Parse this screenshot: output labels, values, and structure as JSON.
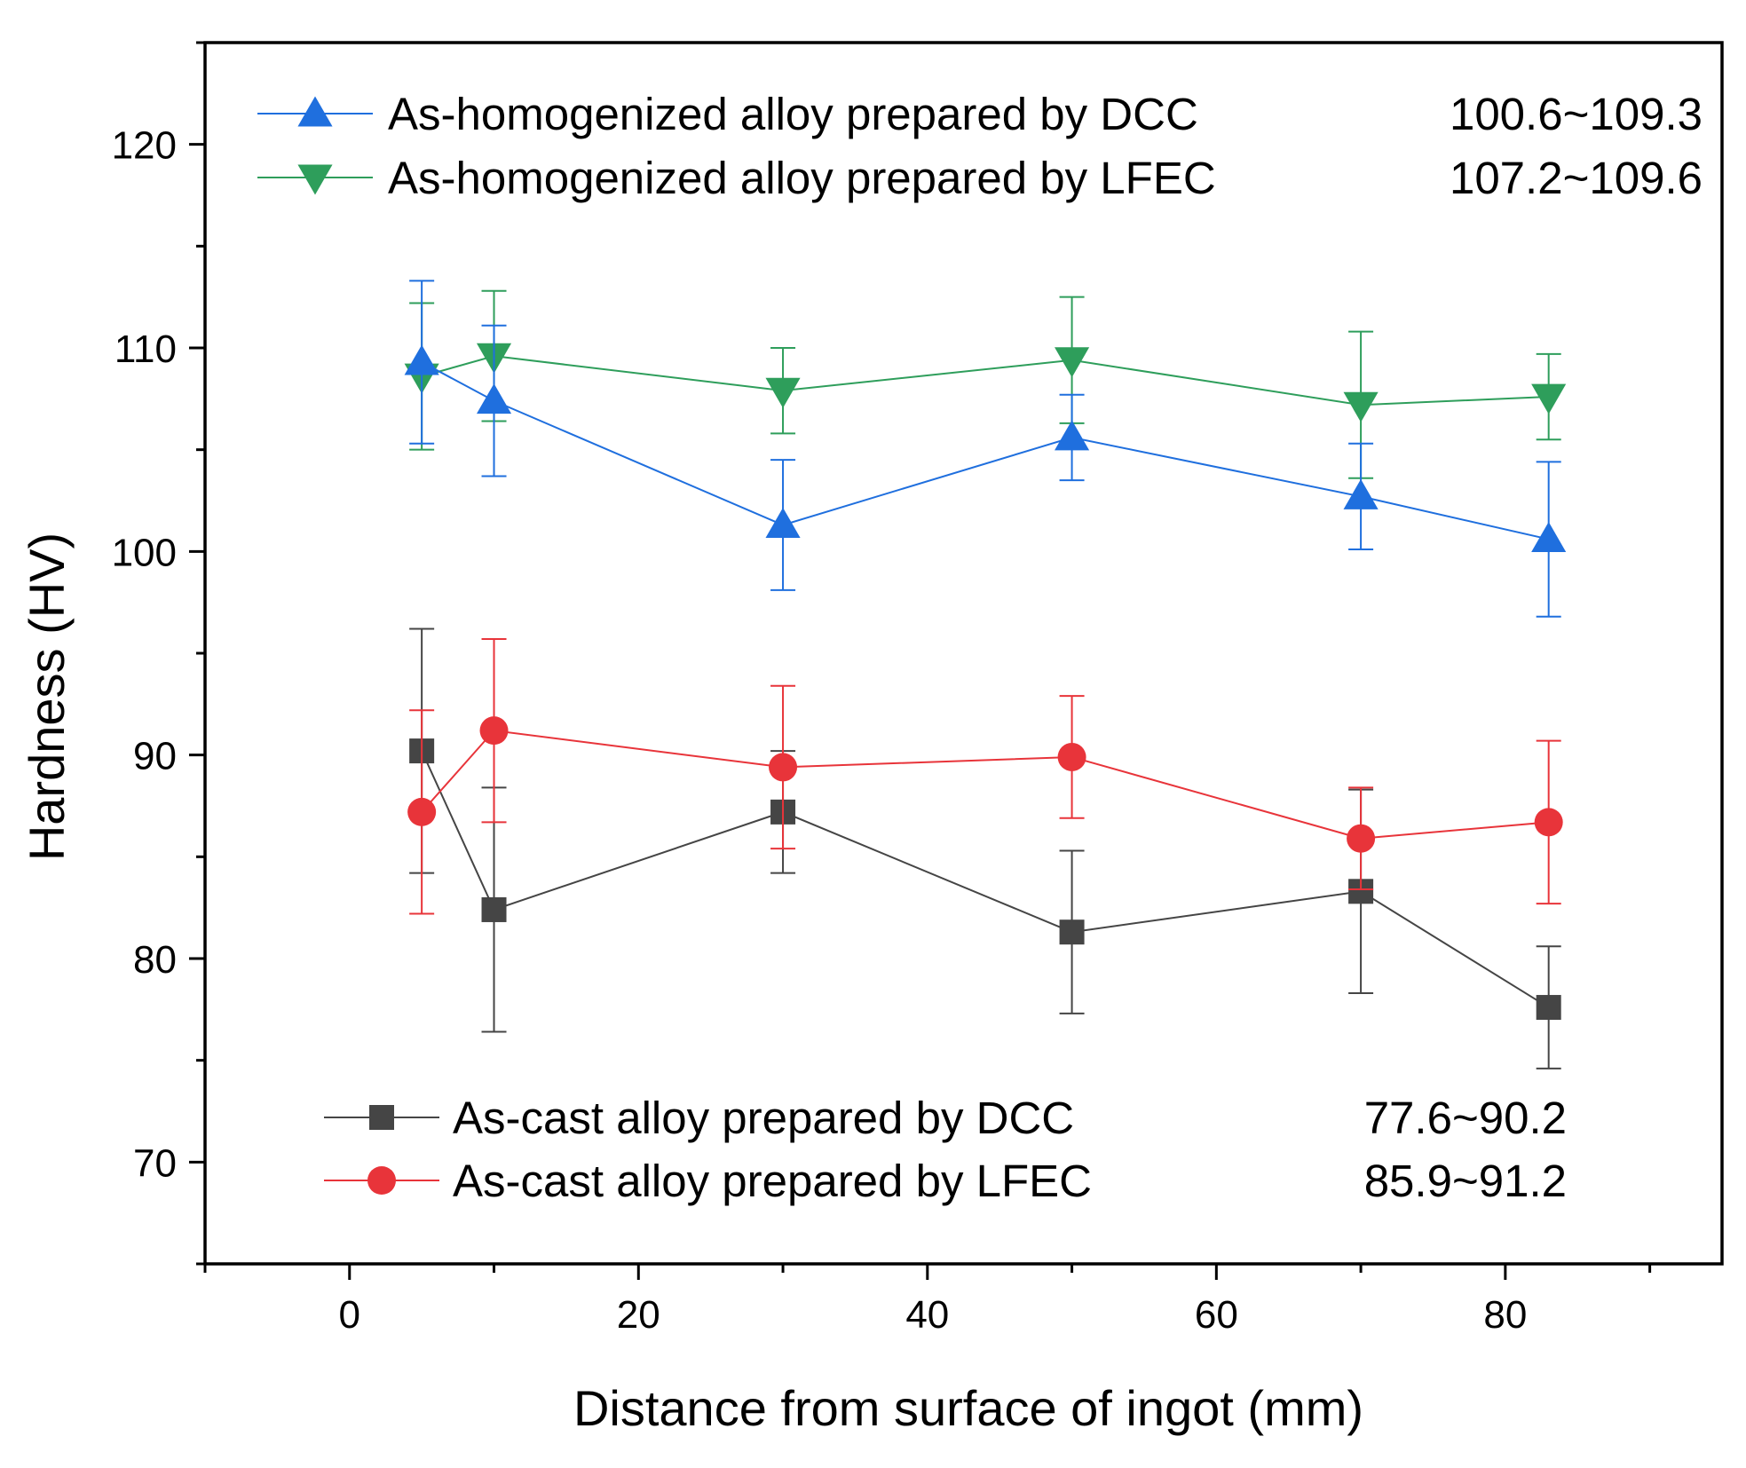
{
  "chart_data": {
    "type": "line",
    "title": "",
    "xlabel": "Distance from surface of ingot (mm)",
    "ylabel": "Hardness (HV)",
    "xlim": [
      -10,
      95
    ],
    "ylim": [
      65,
      125
    ],
    "xticks": [
      0,
      20,
      40,
      60,
      80
    ],
    "yticks": [
      70,
      80,
      90,
      100,
      110,
      120
    ],
    "x": [
      5,
      10,
      30,
      50,
      70,
      83
    ],
    "series": [
      {
        "name": "As-homogenized alloy prepared by DCC",
        "range_label": "100.6~109.3",
        "marker": "triangle-up",
        "color": "#1f6fde",
        "values": [
          109.3,
          107.4,
          101.3,
          105.6,
          102.7,
          100.6
        ],
        "errors": [
          4.0,
          3.7,
          3.2,
          2.1,
          2.6,
          3.8
        ]
      },
      {
        "name": "As-homogenized alloy prepared by LFEC",
        "range_label": "107.2~109.6",
        "marker": "triangle-down",
        "color": "#2e9e5b",
        "values": [
          108.6,
          109.6,
          107.9,
          109.4,
          107.2,
          107.6
        ],
        "errors": [
          3.6,
          3.2,
          2.1,
          3.1,
          3.6,
          2.1
        ]
      },
      {
        "name": "As-cast alloy prepared by DCC",
        "range_label": "77.6~90.2",
        "marker": "square",
        "color": "#454545",
        "values": [
          90.2,
          82.4,
          87.2,
          81.3,
          83.3,
          77.6
        ],
        "errors": [
          6.0,
          6.0,
          3.0,
          4.0,
          5.0,
          3.0
        ]
      },
      {
        "name": "As-cast alloy prepared by LFEC",
        "range_label": "85.9~91.2",
        "marker": "circle",
        "color": "#e8343a",
        "values": [
          87.2,
          91.2,
          89.4,
          89.9,
          85.9,
          86.7
        ],
        "errors": [
          5.0,
          4.5,
          4.0,
          3.0,
          2.5,
          4.0
        ]
      }
    ]
  }
}
